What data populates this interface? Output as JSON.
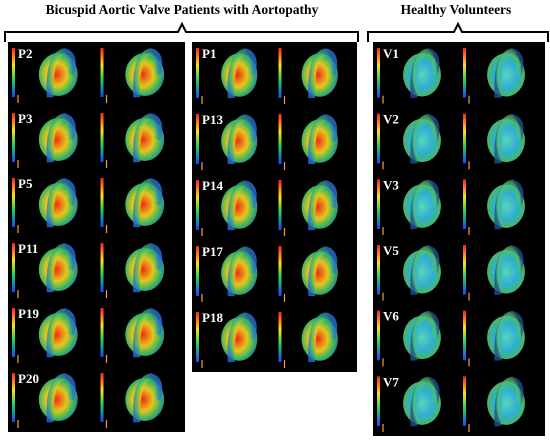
{
  "header": {
    "left_title": "Bicuspid Aortic Valve Patients with Aortopathy",
    "right_title": "Healthy Volunteers"
  },
  "panels": [
    {
      "labels": [
        "P2",
        "P3",
        "P5",
        "P11",
        "P19",
        "P20"
      ]
    },
    {
      "labels": [
        "P1",
        "P13",
        "P14",
        "P17",
        "P18"
      ]
    },
    {
      "labels": [
        "V1",
        "V2",
        "V3",
        "V5",
        "V6",
        "V7"
      ]
    }
  ]
}
